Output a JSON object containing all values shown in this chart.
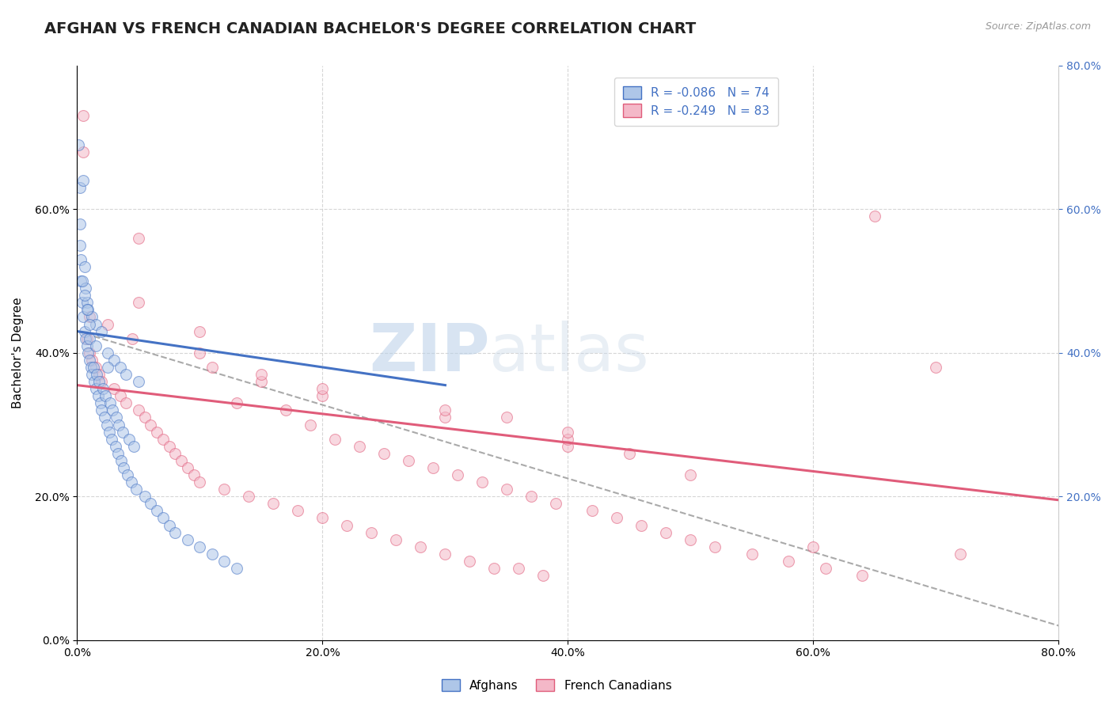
{
  "title": "AFGHAN VS FRENCH CANADIAN BACHELOR'S DEGREE CORRELATION CHART",
  "source_text": "Source: ZipAtlas.com",
  "ylabel": "Bachelor's Degree",
  "xlabel": "",
  "xlim": [
    0.0,
    0.8
  ],
  "ylim": [
    0.0,
    0.8
  ],
  "xtick_vals": [
    0.0,
    0.2,
    0.4,
    0.6,
    0.8
  ],
  "ytick_vals_left": [
    0.0,
    0.2,
    0.4,
    0.6
  ],
  "ytick_vals_right": [
    0.2,
    0.4,
    0.6,
    0.8
  ],
  "legend_label_afghans": "Afghans",
  "legend_label_french": "French Canadians",
  "watermark_zip": "ZIP",
  "watermark_atlas": "atlas",
  "title_fontsize": 14,
  "label_fontsize": 11,
  "tick_fontsize": 10,
  "bg_color": "#ffffff",
  "grid_color": "#cccccc",
  "scatter_alpha": 0.55,
  "scatter_size": 100,
  "afghans_color": "#aec6e8",
  "french_color": "#f4b8c8",
  "afghans_line_color": "#4472c4",
  "french_line_color": "#e05c7a",
  "trendline_gray_color": "#aaaaaa",
  "R_afghan": -0.086,
  "N_afghan": 74,
  "R_french": -0.249,
  "N_french": 83,
  "afghans_x": [
    0.001,
    0.002,
    0.002,
    0.003,
    0.003,
    0.004,
    0.005,
    0.005,
    0.006,
    0.006,
    0.007,
    0.007,
    0.008,
    0.008,
    0.009,
    0.009,
    0.01,
    0.01,
    0.011,
    0.012,
    0.012,
    0.013,
    0.014,
    0.015,
    0.015,
    0.016,
    0.017,
    0.018,
    0.019,
    0.02,
    0.02,
    0.021,
    0.022,
    0.023,
    0.024,
    0.025,
    0.026,
    0.027,
    0.028,
    0.029,
    0.03,
    0.031,
    0.032,
    0.033,
    0.034,
    0.035,
    0.036,
    0.037,
    0.038,
    0.04,
    0.041,
    0.042,
    0.044,
    0.046,
    0.048,
    0.05,
    0.055,
    0.06,
    0.065,
    0.07,
    0.075,
    0.08,
    0.09,
    0.1,
    0.11,
    0.12,
    0.13,
    0.002,
    0.004,
    0.006,
    0.008,
    0.015,
    0.025,
    0.01
  ],
  "afghans_y": [
    0.69,
    0.63,
    0.58,
    0.53,
    0.5,
    0.47,
    0.45,
    0.64,
    0.43,
    0.52,
    0.42,
    0.49,
    0.41,
    0.47,
    0.4,
    0.46,
    0.39,
    0.42,
    0.38,
    0.45,
    0.37,
    0.38,
    0.36,
    0.44,
    0.35,
    0.37,
    0.34,
    0.36,
    0.33,
    0.43,
    0.32,
    0.35,
    0.31,
    0.34,
    0.3,
    0.4,
    0.29,
    0.33,
    0.28,
    0.32,
    0.39,
    0.27,
    0.31,
    0.26,
    0.3,
    0.38,
    0.25,
    0.29,
    0.24,
    0.37,
    0.23,
    0.28,
    0.22,
    0.27,
    0.21,
    0.36,
    0.2,
    0.19,
    0.18,
    0.17,
    0.16,
    0.15,
    0.14,
    0.13,
    0.12,
    0.11,
    0.1,
    0.55,
    0.5,
    0.48,
    0.46,
    0.41,
    0.38,
    0.44
  ],
  "french_x": [
    0.005,
    0.008,
    0.01,
    0.012,
    0.015,
    0.018,
    0.02,
    0.025,
    0.03,
    0.035,
    0.04,
    0.045,
    0.05,
    0.055,
    0.06,
    0.065,
    0.07,
    0.075,
    0.08,
    0.085,
    0.09,
    0.095,
    0.1,
    0.11,
    0.12,
    0.13,
    0.14,
    0.15,
    0.16,
    0.17,
    0.18,
    0.19,
    0.2,
    0.21,
    0.22,
    0.23,
    0.24,
    0.25,
    0.26,
    0.27,
    0.28,
    0.29,
    0.3,
    0.31,
    0.32,
    0.33,
    0.34,
    0.35,
    0.36,
    0.37,
    0.38,
    0.39,
    0.4,
    0.42,
    0.44,
    0.46,
    0.48,
    0.5,
    0.52,
    0.55,
    0.58,
    0.61,
    0.64,
    0.005,
    0.01,
    0.05,
    0.1,
    0.15,
    0.2,
    0.3,
    0.4,
    0.5,
    0.6,
    0.65,
    0.7,
    0.72,
    0.05,
    0.1,
    0.2,
    0.3,
    0.4,
    0.35,
    0.45
  ],
  "french_y": [
    0.73,
    0.42,
    0.4,
    0.39,
    0.38,
    0.37,
    0.36,
    0.44,
    0.35,
    0.34,
    0.33,
    0.42,
    0.32,
    0.31,
    0.3,
    0.29,
    0.28,
    0.27,
    0.26,
    0.25,
    0.24,
    0.23,
    0.22,
    0.38,
    0.21,
    0.33,
    0.2,
    0.36,
    0.19,
    0.32,
    0.18,
    0.3,
    0.17,
    0.28,
    0.16,
    0.27,
    0.15,
    0.26,
    0.14,
    0.25,
    0.13,
    0.24,
    0.12,
    0.23,
    0.11,
    0.22,
    0.1,
    0.21,
    0.1,
    0.2,
    0.09,
    0.19,
    0.27,
    0.18,
    0.17,
    0.16,
    0.15,
    0.14,
    0.13,
    0.12,
    0.11,
    0.1,
    0.09,
    0.68,
    0.45,
    0.56,
    0.43,
    0.37,
    0.34,
    0.31,
    0.28,
    0.23,
    0.13,
    0.59,
    0.38,
    0.12,
    0.47,
    0.4,
    0.35,
    0.32,
    0.29,
    0.31,
    0.26
  ],
  "afghan_trend_x0": 0.0,
  "afghan_trend_x1": 0.3,
  "afghan_trend_y0": 0.43,
  "afghan_trend_y1": 0.355,
  "french_trend_x0": 0.0,
  "french_trend_x1": 0.8,
  "french_trend_y0": 0.355,
  "french_trend_y1": 0.195,
  "gray_trend_x0": 0.0,
  "gray_trend_x1": 0.8,
  "gray_trend_y0": 0.43,
  "gray_trend_y1": 0.02
}
